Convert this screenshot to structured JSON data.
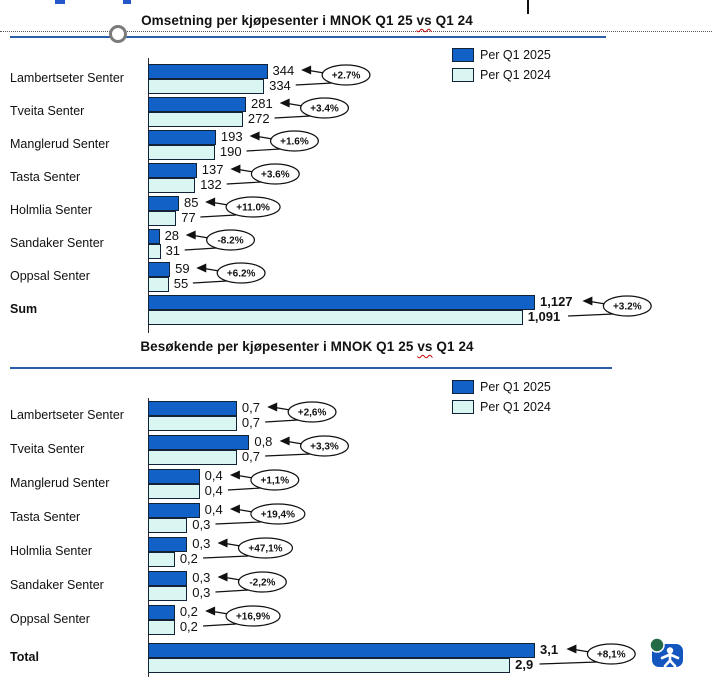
{
  "decor": {
    "has_text_cursor": true,
    "handle": "shape-anchor-circle"
  },
  "colors": {
    "bar_2025": "#1161c7",
    "bar_2024": "#d9f6f2",
    "bar_border": "#122338",
    "rule_blue": "#2a5caa",
    "squiggle_red": "#c00000"
  },
  "icon": {
    "name": "accessibility-person-badge",
    "badge_color": "#1456c0",
    "dot_color": "#226b45"
  },
  "chart_data": [
    {
      "type": "bar",
      "orientation": "horizontal",
      "title": "Omsetning per kjøpesenter i MNOK Q1 25 vs Q1 24",
      "misspelled_word": "vs",
      "categories": [
        "Lambertseter Senter",
        "Tveita Senter",
        "Manglerud Senter",
        "Tasta Senter",
        "Holmlia Senter",
        "Sandaker Senter",
        "Oppsal Senter",
        "Sum"
      ],
      "series": [
        {
          "name": "Per Q1 2025",
          "color": "#1161c7",
          "values": [
            344,
            281,
            193,
            137,
            85,
            28,
            59,
            1127
          ],
          "labels": [
            "344",
            "281",
            "193",
            "137",
            "85",
            "28",
            "59",
            "1,127"
          ]
        },
        {
          "name": "Per Q1 2024",
          "color": "#d9f6f2",
          "values": [
            334,
            272,
            190,
            132,
            77,
            31,
            55,
            1091
          ],
          "labels": [
            "334",
            "272",
            "190",
            "132",
            "77",
            "31",
            "55",
            "1,091"
          ]
        }
      ],
      "change_labels": [
        "+2.7%",
        "+3.4%",
        "+1.6%",
        "+3.6%",
        "+11.0%",
        "-8.2%",
        "+6.2%",
        "+3.2%"
      ],
      "xlim": [
        0,
        1127
      ],
      "legend_position": "top-right",
      "grid": false
    },
    {
      "type": "bar",
      "orientation": "horizontal",
      "title": "Besøkende per kjøpesenter i MNOK Q1 25 vs Q1 24",
      "misspelled_word": "vs",
      "categories": [
        "Lambertseter Senter",
        "Tveita Senter",
        "Manglerud Senter",
        "Tasta Senter",
        "Holmlia Senter",
        "Sandaker Senter",
        "Oppsal Senter",
        "Total"
      ],
      "series": [
        {
          "name": "Per Q1 2025",
          "color": "#1161c7",
          "values": [
            0.7,
            0.8,
            0.4,
            0.4,
            0.3,
            0.3,
            0.2,
            3.1
          ],
          "labels": [
            "0,7",
            "0,8",
            "0,4",
            "0,4",
            "0,3",
            "0,3",
            "0,2",
            "3,1"
          ]
        },
        {
          "name": "Per Q1 2024",
          "color": "#d9f6f2",
          "values": [
            0.7,
            0.7,
            0.4,
            0.3,
            0.2,
            0.3,
            0.2,
            2.9
          ],
          "labels": [
            "0,7",
            "0,7",
            "0,4",
            "0,3",
            "0,2",
            "0,3",
            "0,2",
            "2,9"
          ]
        }
      ],
      "change_labels": [
        "+2,6%",
        "+3,3%",
        "+1,1%",
        "+19,4%",
        "+47,1%",
        "-2,2%",
        "+16,9%",
        "+8,1%"
      ],
      "xlim": [
        0,
        3.1
      ],
      "legend_position": "top-right",
      "grid": false
    }
  ]
}
